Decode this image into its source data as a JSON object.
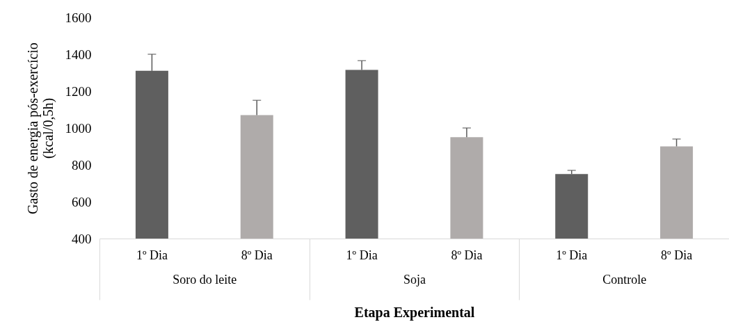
{
  "chart_data": {
    "type": "bar",
    "xlabel": "Etapa Experimental",
    "ylabel": "Gasto de energia pós-exercício\n(kcal/0,5h)",
    "categories": [
      "Soro do leite",
      "Soja",
      "Controle"
    ],
    "series": [
      {
        "name": "1º Dia",
        "color": "#5f5f5f",
        "values": [
          1310,
          1315,
          750
        ],
        "errors": [
          [
            1310,
            1400
          ],
          [
            1315,
            1365
          ],
          [
            750,
            770
          ]
        ]
      },
      {
        "name": "8º Dia",
        "color": "#afabaa",
        "values": [
          1070,
          950,
          900
        ],
        "errors": [
          [
            1070,
            1150
          ],
          [
            950,
            1000
          ],
          [
            900,
            940
          ]
        ]
      }
    ],
    "ylim": [
      400,
      1600
    ],
    "yticks": [
      400,
      600,
      800,
      1000,
      1200,
      1400,
      1600
    ],
    "grid": false
  }
}
